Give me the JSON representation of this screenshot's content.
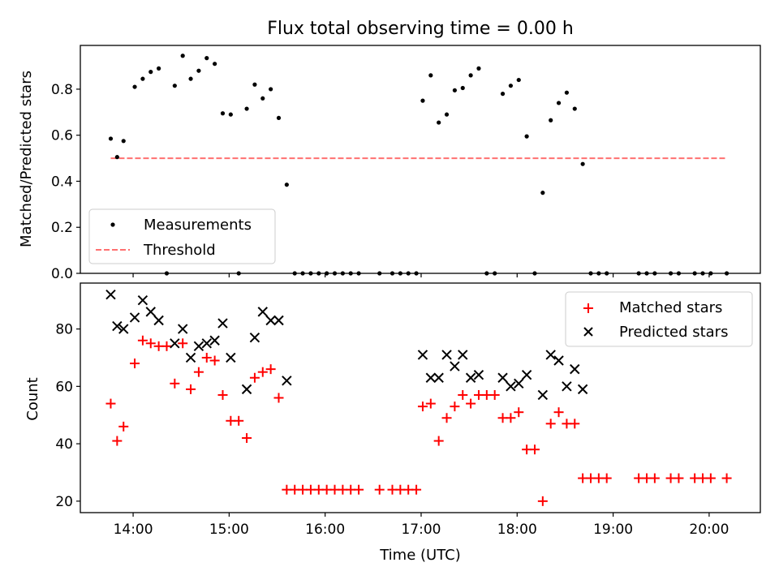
{
  "chart_data": [
    {
      "type": "scatter",
      "title": "Flux total observing time = 0.00 h",
      "xlabel": "",
      "ylabel": "Matched/Predicted stars",
      "xlim": [
        "13:27",
        "20:32"
      ],
      "ylim": [
        0,
        0.99
      ],
      "yticks": [
        0.0,
        0.2,
        0.4,
        0.6,
        0.8
      ],
      "ytick_labels": [
        "0.0",
        "0.2",
        "0.4",
        "0.6",
        "0.8"
      ],
      "legend_position": "lower-left",
      "series": [
        {
          "name": "Measurements",
          "marker": "dot",
          "color": "#000000",
          "points": [
            [
              "13:46",
              0.585
            ],
            [
              "13:50",
              0.505
            ],
            [
              "13:54",
              0.575
            ],
            [
              "14:01",
              0.81
            ],
            [
              "14:06",
              0.845
            ],
            [
              "14:11",
              0.875
            ],
            [
              "14:16",
              0.89
            ],
            [
              "14:21",
              0.0
            ],
            [
              "14:26",
              0.815
            ],
            [
              "14:31",
              0.945
            ],
            [
              "14:36",
              0.845
            ],
            [
              "14:41",
              0.88
            ],
            [
              "14:46",
              0.935
            ],
            [
              "14:51",
              0.91
            ],
            [
              "14:56",
              0.695
            ],
            [
              "15:01",
              0.69
            ],
            [
              "15:06",
              0.0
            ],
            [
              "15:11",
              0.715
            ],
            [
              "15:16",
              0.82
            ],
            [
              "15:21",
              0.76
            ],
            [
              "15:26",
              0.8
            ],
            [
              "15:31",
              0.675
            ],
            [
              "15:36",
              0.385
            ],
            [
              "15:41",
              0.0
            ],
            [
              "15:46",
              0.0
            ],
            [
              "15:51",
              0.0
            ],
            [
              "15:56",
              0.0
            ],
            [
              "16:01",
              0.0
            ],
            [
              "16:06",
              0.0
            ],
            [
              "16:11",
              0.0
            ],
            [
              "16:16",
              0.0
            ],
            [
              "16:21",
              0.0
            ],
            [
              "16:34",
              0.0
            ],
            [
              "16:42",
              0.0
            ],
            [
              "16:47",
              0.0
            ],
            [
              "16:52",
              0.0
            ],
            [
              "16:57",
              0.0
            ],
            [
              "17:01",
              0.75
            ],
            [
              "17:06",
              0.86
            ],
            [
              "17:11",
              0.655
            ],
            [
              "17:16",
              0.69
            ],
            [
              "17:21",
              0.795
            ],
            [
              "17:26",
              0.805
            ],
            [
              "17:31",
              0.86
            ],
            [
              "17:36",
              0.89
            ],
            [
              "17:41",
              0.0
            ],
            [
              "17:46",
              0.0
            ],
            [
              "17:51",
              0.78
            ],
            [
              "17:56",
              0.815
            ],
            [
              "18:01",
              0.84
            ],
            [
              "18:06",
              0.595
            ],
            [
              "18:11",
              0.0
            ],
            [
              "18:16",
              0.35
            ],
            [
              "18:21",
              0.665
            ],
            [
              "18:26",
              0.74
            ],
            [
              "18:31",
              0.785
            ],
            [
              "18:36",
              0.715
            ],
            [
              "18:41",
              0.475
            ],
            [
              "18:46",
              0.0
            ],
            [
              "18:51",
              0.0
            ],
            [
              "18:56",
              0.0
            ],
            [
              "19:16",
              0.0
            ],
            [
              "19:21",
              0.0
            ],
            [
              "19:26",
              0.0
            ],
            [
              "19:36",
              0.0
            ],
            [
              "19:41",
              0.0
            ],
            [
              "19:51",
              0.0
            ],
            [
              "19:56",
              0.0
            ],
            [
              "20:01",
              0.0
            ],
            [
              "20:11",
              0.0
            ]
          ]
        },
        {
          "name": "Threshold",
          "style": "dashed-line",
          "color": "#ff7070",
          "points": [
            [
              "13:46",
              0.5
            ],
            [
              "20:11",
              0.5
            ]
          ]
        }
      ]
    },
    {
      "type": "scatter",
      "title": "",
      "xlabel": "Time (UTC)",
      "ylabel": "Count",
      "xlim": [
        "13:27",
        "20:32"
      ],
      "ylim": [
        16,
        96
      ],
      "yticks": [
        20,
        40,
        60,
        80
      ],
      "ytick_labels": [
        "20",
        "40",
        "60",
        "80"
      ],
      "xticks": [
        "14:00",
        "15:00",
        "16:00",
        "17:00",
        "18:00",
        "19:00",
        "20:00"
      ],
      "legend_position": "upper-right",
      "series": [
        {
          "name": "Matched stars",
          "marker": "plus",
          "color": "#ff0000",
          "points": [
            [
              "13:46",
              54
            ],
            [
              "13:50",
              41
            ],
            [
              "13:54",
              46
            ],
            [
              "14:01",
              68
            ],
            [
              "14:06",
              76
            ],
            [
              "14:11",
              75
            ],
            [
              "14:16",
              74
            ],
            [
              "14:21",
              74
            ],
            [
              "14:26",
              61
            ],
            [
              "14:31",
              75
            ],
            [
              "14:36",
              59
            ],
            [
              "14:41",
              65
            ],
            [
              "14:46",
              70
            ],
            [
              "14:51",
              69
            ],
            [
              "14:56",
              57
            ],
            [
              "15:01",
              48
            ],
            [
              "15:06",
              48
            ],
            [
              "15:11",
              42
            ],
            [
              "15:16",
              63
            ],
            [
              "15:21",
              65
            ],
            [
              "15:26",
              66
            ],
            [
              "15:31",
              56
            ],
            [
              "15:36",
              24
            ],
            [
              "15:41",
              24
            ],
            [
              "15:46",
              24
            ],
            [
              "15:51",
              24
            ],
            [
              "15:56",
              24
            ],
            [
              "16:01",
              24
            ],
            [
              "16:06",
              24
            ],
            [
              "16:11",
              24
            ],
            [
              "16:16",
              24
            ],
            [
              "16:21",
              24
            ],
            [
              "16:34",
              24
            ],
            [
              "16:42",
              24
            ],
            [
              "16:47",
              24
            ],
            [
              "16:52",
              24
            ],
            [
              "16:57",
              24
            ],
            [
              "17:01",
              53
            ],
            [
              "17:06",
              54
            ],
            [
              "17:11",
              41
            ],
            [
              "17:16",
              49
            ],
            [
              "17:21",
              53
            ],
            [
              "17:26",
              57
            ],
            [
              "17:31",
              54
            ],
            [
              "17:36",
              57
            ],
            [
              "17:41",
              57
            ],
            [
              "17:46",
              57
            ],
            [
              "17:51",
              49
            ],
            [
              "17:56",
              49
            ],
            [
              "18:01",
              51
            ],
            [
              "18:06",
              38
            ],
            [
              "18:11",
              38
            ],
            [
              "18:16",
              20
            ],
            [
              "18:21",
              47
            ],
            [
              "18:26",
              51
            ],
            [
              "18:31",
              47
            ],
            [
              "18:36",
              47
            ],
            [
              "18:41",
              28
            ],
            [
              "18:46",
              28
            ],
            [
              "18:51",
              28
            ],
            [
              "18:56",
              28
            ],
            [
              "19:16",
              28
            ],
            [
              "19:21",
              28
            ],
            [
              "19:26",
              28
            ],
            [
              "19:36",
              28
            ],
            [
              "19:41",
              28
            ],
            [
              "19:51",
              28
            ],
            [
              "19:56",
              28
            ],
            [
              "20:01",
              28
            ],
            [
              "20:11",
              28
            ]
          ]
        },
        {
          "name": "Predicted stars",
          "marker": "x",
          "color": "#000000",
          "points": [
            [
              "13:46",
              92
            ],
            [
              "13:50",
              81
            ],
            [
              "13:54",
              80
            ],
            [
              "14:01",
              84
            ],
            [
              "14:06",
              90
            ],
            [
              "14:11",
              86
            ],
            [
              "14:16",
              83
            ],
            [
              "14:26",
              75
            ],
            [
              "14:31",
              80
            ],
            [
              "14:36",
              70
            ],
            [
              "14:41",
              74
            ],
            [
              "14:46",
              75
            ],
            [
              "14:51",
              76
            ],
            [
              "14:56",
              82
            ],
            [
              "15:01",
              70
            ],
            [
              "15:11",
              59
            ],
            [
              "15:16",
              77
            ],
            [
              "15:21",
              86
            ],
            [
              "15:26",
              83
            ],
            [
              "15:31",
              83
            ],
            [
              "15:36",
              62
            ],
            [
              "17:01",
              71
            ],
            [
              "17:06",
              63
            ],
            [
              "17:11",
              63
            ],
            [
              "17:16",
              71
            ],
            [
              "17:21",
              67
            ],
            [
              "17:26",
              71
            ],
            [
              "17:31",
              63
            ],
            [
              "17:36",
              64
            ],
            [
              "17:51",
              63
            ],
            [
              "17:56",
              60
            ],
            [
              "18:01",
              61
            ],
            [
              "18:06",
              64
            ],
            [
              "18:16",
              57
            ],
            [
              "18:21",
              71
            ],
            [
              "18:26",
              69
            ],
            [
              "18:31",
              60
            ],
            [
              "18:36",
              66
            ],
            [
              "18:41",
              59
            ]
          ]
        }
      ]
    }
  ]
}
